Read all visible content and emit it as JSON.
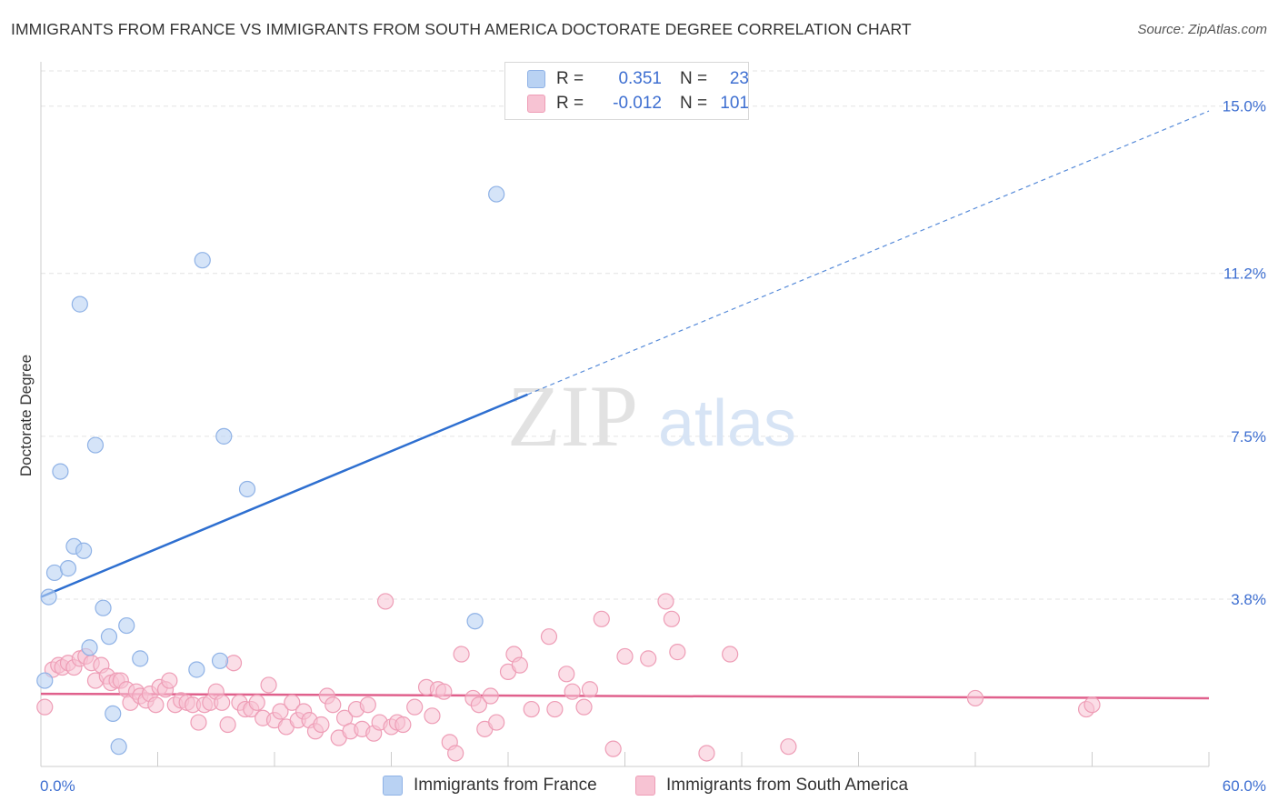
{
  "title": "IMMIGRANTS FROM FRANCE VS IMMIGRANTS FROM SOUTH AMERICA DOCTORATE DEGREE CORRELATION CHART",
  "source": "Source: ZipAtlas.com",
  "watermark": {
    "zip": "ZIP",
    "atlas": "atlas"
  },
  "colors": {
    "blue_fill": "#b9d2f3",
    "blue_stroke": "#8fb2e6",
    "blue_line": "#2e6fd0",
    "pink_fill": "#f7c3d3",
    "pink_stroke": "#ee9db6",
    "pink_line": "#e0608c",
    "value_text": "#3e6fd1"
  },
  "legend": {
    "rows": [
      {
        "r_label": "R =",
        "r_value": "0.351",
        "n_label": "N =",
        "n_value": "23"
      },
      {
        "r_label": "R =",
        "r_value": "-0.012",
        "n_label": "N =",
        "n_value": "101"
      }
    ]
  },
  "chart_data": {
    "type": "scatter",
    "title": "IMMIGRANTS FROM FRANCE VS IMMIGRANTS FROM SOUTH AMERICA DOCTORATE DEGREE CORRELATION CHART",
    "xlabel": "",
    "ylabel": "Doctorate Degree",
    "xlim": [
      0,
      60
    ],
    "ylim": [
      0,
      15.8
    ],
    "x_tick_labels": [
      "0.0%",
      "60.0%"
    ],
    "y_ticks": [
      3.8,
      7.5,
      11.2,
      15.0
    ],
    "y_tick_labels": [
      "3.8%",
      "7.5%",
      "11.2%",
      "15.0%"
    ],
    "grid": true,
    "legend_position": "top-center",
    "series": [
      {
        "name": "Immigrants from France",
        "r": 0.351,
        "n": 23,
        "trend": {
          "x0": 0,
          "y0": 3.85,
          "x1": 25,
          "y1": 8.45,
          "dashed_to_x": 60
        },
        "points": [
          [
            0.2,
            1.95
          ],
          [
            0.4,
            3.85
          ],
          [
            0.7,
            4.4
          ],
          [
            1.0,
            6.7
          ],
          [
            1.4,
            4.5
          ],
          [
            1.7,
            5.0
          ],
          [
            2.0,
            10.5
          ],
          [
            2.2,
            4.9
          ],
          [
            2.5,
            2.7
          ],
          [
            2.8,
            7.3
          ],
          [
            3.2,
            3.6
          ],
          [
            3.5,
            2.95
          ],
          [
            3.7,
            1.2
          ],
          [
            4.0,
            0.45
          ],
          [
            4.4,
            3.2
          ],
          [
            5.1,
            2.45
          ],
          [
            8.0,
            2.2
          ],
          [
            8.3,
            11.5
          ],
          [
            9.2,
            2.4
          ],
          [
            9.4,
            7.5
          ],
          [
            10.6,
            6.3
          ],
          [
            22.3,
            3.3
          ],
          [
            23.4,
            13.0
          ]
        ]
      },
      {
        "name": "Immigrants from South America",
        "r": -0.012,
        "n": 101,
        "trend": {
          "x0": 0,
          "y0": 1.65,
          "x1": 60,
          "y1": 1.55
        },
        "points": [
          [
            0.2,
            1.35
          ],
          [
            0.6,
            2.2
          ],
          [
            0.9,
            2.3
          ],
          [
            1.1,
            2.25
          ],
          [
            1.4,
            2.35
          ],
          [
            1.7,
            2.25
          ],
          [
            2.0,
            2.45
          ],
          [
            2.3,
            2.5
          ],
          [
            2.6,
            2.35
          ],
          [
            2.8,
            1.95
          ],
          [
            3.1,
            2.3
          ],
          [
            3.4,
            2.05
          ],
          [
            3.6,
            1.9
          ],
          [
            3.9,
            1.95
          ],
          [
            4.1,
            1.95
          ],
          [
            4.4,
            1.75
          ],
          [
            4.6,
            1.45
          ],
          [
            4.9,
            1.7
          ],
          [
            5.1,
            1.6
          ],
          [
            5.4,
            1.5
          ],
          [
            5.6,
            1.65
          ],
          [
            5.9,
            1.4
          ],
          [
            6.1,
            1.8
          ],
          [
            6.4,
            1.75
          ],
          [
            6.6,
            1.95
          ],
          [
            6.9,
            1.4
          ],
          [
            7.2,
            1.5
          ],
          [
            7.5,
            1.45
          ],
          [
            7.8,
            1.4
          ],
          [
            8.1,
            1.0
          ],
          [
            8.4,
            1.4
          ],
          [
            8.7,
            1.45
          ],
          [
            9.0,
            1.7
          ],
          [
            9.3,
            1.45
          ],
          [
            9.6,
            0.95
          ],
          [
            9.9,
            2.35
          ],
          [
            10.2,
            1.45
          ],
          [
            10.5,
            1.3
          ],
          [
            10.8,
            1.3
          ],
          [
            11.1,
            1.45
          ],
          [
            11.4,
            1.1
          ],
          [
            11.7,
            1.85
          ],
          [
            12.0,
            1.05
          ],
          [
            12.3,
            1.25
          ],
          [
            12.6,
            0.9
          ],
          [
            12.9,
            1.45
          ],
          [
            13.2,
            1.05
          ],
          [
            13.5,
            1.25
          ],
          [
            13.8,
            1.05
          ],
          [
            14.1,
            0.8
          ],
          [
            14.4,
            0.95
          ],
          [
            14.7,
            1.6
          ],
          [
            15.0,
            1.4
          ],
          [
            15.3,
            0.65
          ],
          [
            15.6,
            1.1
          ],
          [
            15.9,
            0.8
          ],
          [
            16.2,
            1.3
          ],
          [
            16.5,
            0.85
          ],
          [
            16.8,
            1.4
          ],
          [
            17.1,
            0.75
          ],
          [
            17.4,
            1.0
          ],
          [
            17.7,
            3.75
          ],
          [
            18.0,
            0.9
          ],
          [
            18.3,
            1.0
          ],
          [
            18.6,
            0.95
          ],
          [
            19.2,
            1.35
          ],
          [
            19.8,
            1.8
          ],
          [
            20.1,
            1.15
          ],
          [
            20.4,
            1.75
          ],
          [
            20.7,
            1.7
          ],
          [
            21.0,
            0.55
          ],
          [
            21.3,
            0.3
          ],
          [
            21.6,
            2.55
          ],
          [
            22.2,
            1.55
          ],
          [
            22.5,
            1.4
          ],
          [
            22.8,
            0.85
          ],
          [
            23.1,
            1.6
          ],
          [
            23.4,
            1.0
          ],
          [
            24.0,
            2.15
          ],
          [
            24.3,
            2.55
          ],
          [
            24.6,
            2.3
          ],
          [
            25.2,
            1.3
          ],
          [
            26.1,
            2.95
          ],
          [
            26.4,
            1.3
          ],
          [
            27.0,
            2.1
          ],
          [
            27.3,
            1.7
          ],
          [
            27.9,
            1.35
          ],
          [
            28.2,
            1.75
          ],
          [
            28.8,
            3.35
          ],
          [
            29.4,
            0.4
          ],
          [
            30.0,
            2.5
          ],
          [
            31.2,
            2.45
          ],
          [
            32.1,
            3.75
          ],
          [
            32.4,
            3.35
          ],
          [
            32.7,
            2.6
          ],
          [
            34.2,
            0.3
          ],
          [
            35.4,
            2.55
          ],
          [
            38.4,
            0.45
          ],
          [
            48.0,
            1.55
          ],
          [
            53.7,
            1.3
          ],
          [
            54.0,
            1.4
          ]
        ]
      }
    ]
  },
  "bottom_legend": [
    {
      "label": "Immigrants from France"
    },
    {
      "label": "Immigrants from South America"
    }
  ]
}
